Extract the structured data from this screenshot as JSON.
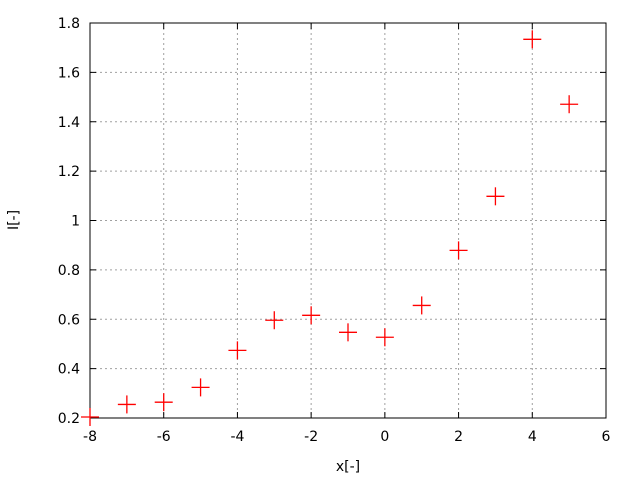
{
  "chart_data": {
    "type": "scatter",
    "title": "",
    "xlabel": "x[-]",
    "ylabel": "I[-]",
    "xlim": [
      -8,
      6
    ],
    "ylim": [
      0.2,
      1.8
    ],
    "xticks": [
      "-8",
      "-6",
      "-4",
      "-2",
      "0",
      "2",
      "4",
      "6"
    ],
    "yticks": [
      "0.2",
      "0.4",
      "0.6",
      "0.8",
      "1",
      "1.2",
      "1.4",
      "1.6",
      "1.8"
    ],
    "grid": true,
    "marker": "plus",
    "color": "#ff0000",
    "points": [
      {
        "x": -8,
        "y": 0.204
      },
      {
        "x": -7,
        "y": 0.255
      },
      {
        "x": -6,
        "y": 0.264
      },
      {
        "x": -5,
        "y": 0.324
      },
      {
        "x": -4,
        "y": 0.474
      },
      {
        "x": -3,
        "y": 0.596
      },
      {
        "x": -2,
        "y": 0.616
      },
      {
        "x": -1,
        "y": 0.547
      },
      {
        "x": 0,
        "y": 0.527
      },
      {
        "x": 1,
        "y": 0.656
      },
      {
        "x": 2,
        "y": 0.879
      },
      {
        "x": 3,
        "y": 1.098
      },
      {
        "x": 4,
        "y": 1.734
      },
      {
        "x": 5,
        "y": 1.471
      }
    ]
  }
}
